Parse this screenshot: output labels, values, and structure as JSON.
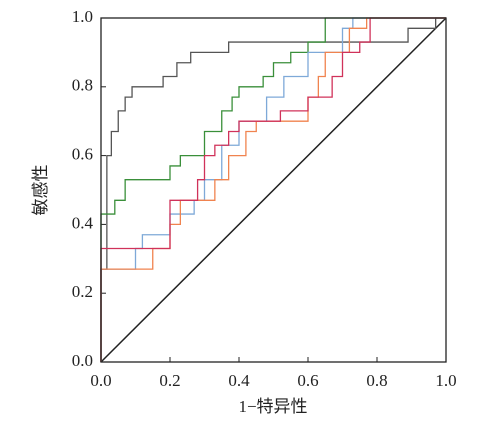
{
  "chart_data": {
    "type": "line",
    "x_label": "1−特异性",
    "y_label": "敏感性",
    "xlim": [
      0,
      1
    ],
    "ylim": [
      0,
      1
    ],
    "xticks": [
      {
        "value": 0,
        "label": "0.0"
      },
      {
        "value": 0.2,
        "label": "0.2"
      },
      {
        "value": 0.4,
        "label": "0.4"
      },
      {
        "value": 0.6,
        "label": "0.6"
      },
      {
        "value": 0.8,
        "label": "0.8"
      },
      {
        "value": 1,
        "label": "1.0"
      }
    ],
    "yticks": [
      {
        "value": 0,
        "label": "0.0"
      },
      {
        "value": 0.2,
        "label": "0.2"
      },
      {
        "value": 0.4,
        "label": "0.4"
      },
      {
        "value": 0.6,
        "label": "0.6"
      },
      {
        "value": 0.8,
        "label": "0.8"
      },
      {
        "value": 1,
        "label": "1.0"
      }
    ],
    "series": [
      {
        "color": "#555555",
        "x": [
          0,
          0,
          0.017,
          0.017,
          0.03,
          0.03,
          0.05,
          0.05,
          0.07,
          0.07,
          0.09,
          0.09,
          0.18,
          0.18,
          0.22,
          0.22,
          0.26,
          0.26,
          0.37,
          0.37,
          0.89,
          0.89,
          0.97,
          0.97,
          1
        ],
        "values": [
          0,
          0.27,
          0.27,
          0.6,
          0.6,
          0.67,
          0.67,
          0.73,
          0.73,
          0.77,
          0.77,
          0.8,
          0.8,
          0.83,
          0.83,
          0.87,
          0.87,
          0.9,
          0.9,
          0.93,
          0.93,
          0.97,
          0.97,
          1,
          1
        ]
      },
      {
        "color": "#3a8f3a",
        "x": [
          0,
          0,
          0.04,
          0.04,
          0.07,
          0.07,
          0.2,
          0.2,
          0.23,
          0.23,
          0.3,
          0.3,
          0.35,
          0.35,
          0.38,
          0.38,
          0.4,
          0.4,
          0.47,
          0.47,
          0.5,
          0.5,
          0.55,
          0.55,
          0.6,
          0.6,
          0.65,
          0.65,
          1
        ],
        "values": [
          0,
          0.43,
          0.43,
          0.47,
          0.47,
          0.53,
          0.53,
          0.57,
          0.57,
          0.6,
          0.6,
          0.67,
          0.67,
          0.73,
          0.73,
          0.77,
          0.77,
          0.8,
          0.8,
          0.83,
          0.83,
          0.87,
          0.87,
          0.9,
          0.9,
          0.93,
          0.93,
          1,
          1
        ]
      },
      {
        "color": "#7ea9d8",
        "x": [
          0,
          0,
          0.1,
          0.1,
          0.12,
          0.12,
          0.2,
          0.2,
          0.27,
          0.27,
          0.3,
          0.3,
          0.35,
          0.35,
          0.4,
          0.4,
          0.48,
          0.48,
          0.53,
          0.53,
          0.6,
          0.6,
          0.7,
          0.7,
          0.73,
          0.73,
          1
        ],
        "values": [
          0,
          0.27,
          0.27,
          0.33,
          0.33,
          0.37,
          0.37,
          0.43,
          0.43,
          0.47,
          0.47,
          0.53,
          0.53,
          0.63,
          0.63,
          0.7,
          0.7,
          0.77,
          0.77,
          0.83,
          0.83,
          0.9,
          0.9,
          0.97,
          0.97,
          1,
          1
        ]
      },
      {
        "color": "#f0834f",
        "x": [
          0,
          0,
          0.15,
          0.15,
          0.2,
          0.2,
          0.23,
          0.23,
          0.33,
          0.33,
          0.37,
          0.37,
          0.42,
          0.42,
          0.45,
          0.45,
          0.6,
          0.6,
          0.63,
          0.63,
          0.65,
          0.65,
          0.72,
          0.72,
          0.77,
          0.77,
          1
        ],
        "values": [
          0,
          0.27,
          0.27,
          0.33,
          0.33,
          0.4,
          0.4,
          0.47,
          0.47,
          0.53,
          0.53,
          0.6,
          0.6,
          0.67,
          0.67,
          0.7,
          0.7,
          0.77,
          0.77,
          0.83,
          0.83,
          0.9,
          0.9,
          0.97,
          0.97,
          1,
          1
        ]
      },
      {
        "color": "#d0325a",
        "x": [
          0,
          0,
          0.2,
          0.2,
          0.28,
          0.28,
          0.3,
          0.3,
          0.33,
          0.33,
          0.37,
          0.37,
          0.4,
          0.4,
          0.52,
          0.52,
          0.6,
          0.6,
          0.67,
          0.67,
          0.7,
          0.7,
          0.75,
          0.75,
          0.78,
          0.78,
          1
        ],
        "values": [
          0,
          0.33,
          0.33,
          0.47,
          0.47,
          0.53,
          0.53,
          0.6,
          0.6,
          0.63,
          0.63,
          0.67,
          0.67,
          0.7,
          0.7,
          0.73,
          0.73,
          0.77,
          0.77,
          0.83,
          0.83,
          0.9,
          0.9,
          0.93,
          0.93,
          1,
          1
        ]
      }
    ]
  }
}
